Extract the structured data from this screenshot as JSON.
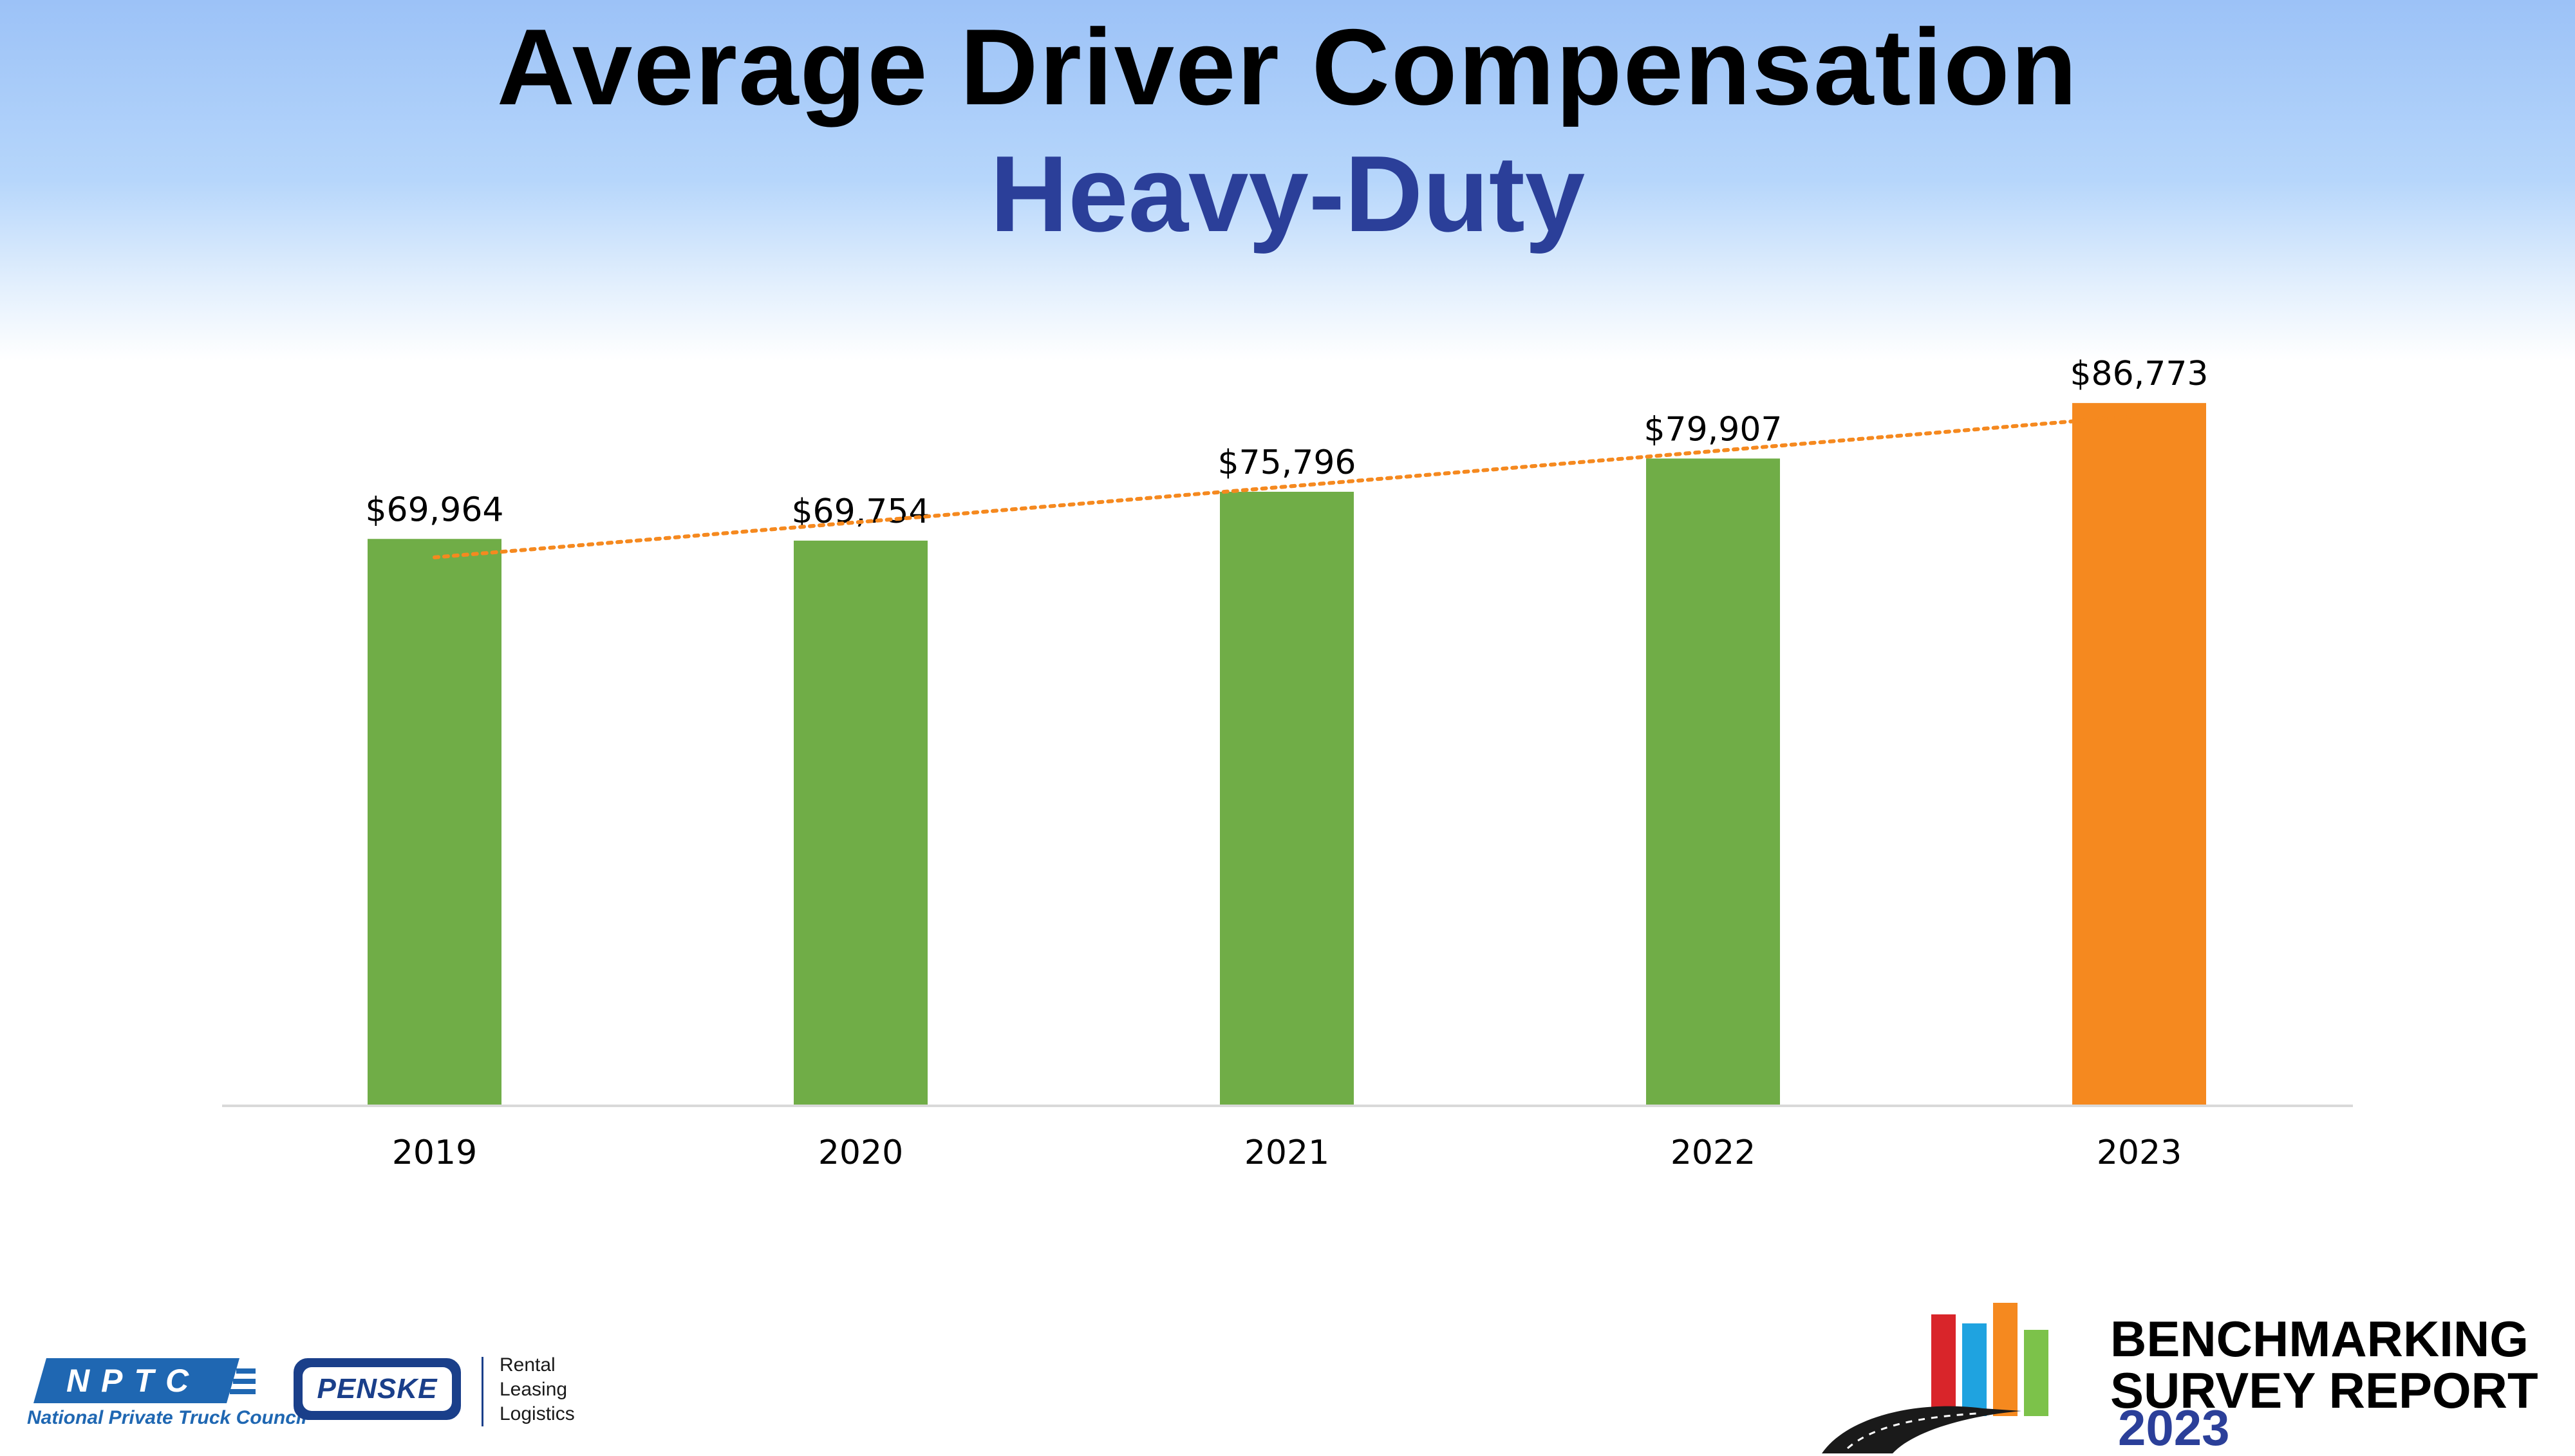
{
  "header": {
    "title": "Average Driver Compensation",
    "subtitle": "Heavy-Duty"
  },
  "chart_data": {
    "type": "bar",
    "categories": [
      "2019",
      "2020",
      "2021",
      "2022",
      "2023"
    ],
    "values": [
      69964,
      69754,
      75796,
      79907,
      86773
    ],
    "value_labels": [
      "$69,964",
      "$69,754",
      "$75,796",
      "$79,907",
      "$86,773"
    ],
    "bar_colors": [
      "#70ad47",
      "#70ad47",
      "#70ad47",
      "#70ad47",
      "#f5891f"
    ],
    "trendline": {
      "type": "linear",
      "style": "dotted",
      "color": "#f5891f"
    },
    "ylim": [
      0,
      100000
    ],
    "y_axis_visible": false,
    "grid": false,
    "legend": "none"
  },
  "footer": {
    "nptc_abbrev": "NPTC",
    "nptc_name": "National Private Truck Council",
    "penske_name": "PENSKE",
    "penske_tagline": [
      "Rental",
      "Leasing",
      "Logistics"
    ],
    "report_title_line1": "BENCHMARKING",
    "report_title_line2": "SURVEY REPORT",
    "report_year": "2023",
    "report_bar_colors": [
      "#d9252a",
      "#1fa3e0",
      "#f5891f",
      "#7cc24a"
    ]
  }
}
